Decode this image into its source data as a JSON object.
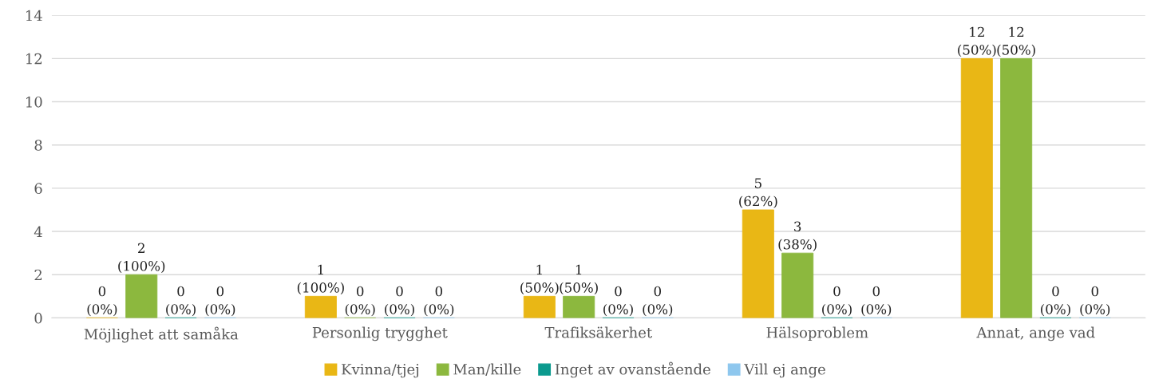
{
  "chart_data": {
    "type": "bar",
    "categories": [
      "Möjlighet att samåka",
      "Personlig trygghet",
      "Trafiksäkerhet",
      "Hälsoproblem",
      "Annat, ange vad"
    ],
    "series": [
      {
        "name": "Kvinna/tjej",
        "color": "#e9b715",
        "values": [
          0,
          1,
          1,
          5,
          12
        ],
        "value_labels": [
          "0\n(0%)",
          "1\n(100%)",
          "1\n(50%)",
          "5\n(62%)",
          "12\n(50%)"
        ]
      },
      {
        "name": "Man/kille",
        "color": "#8cb83e",
        "values": [
          2,
          0,
          1,
          3,
          12
        ],
        "value_labels": [
          "2\n(100%)",
          "0\n(0%)",
          "1\n(50%)",
          "3\n(38%)",
          "12\n(50%)"
        ]
      },
      {
        "name": "Inget av ovanstående",
        "color": "#0b9a8e",
        "values": [
          0,
          0,
          0,
          0,
          0
        ],
        "value_labels": [
          "0\n(0%)",
          "0\n(0%)",
          "0\n(0%)",
          "0\n(0%)",
          "0\n(0%)"
        ]
      },
      {
        "name": "Vill ej ange",
        "color": "#8ec7ee",
        "values": [
          0,
          0,
          0,
          0,
          0
        ],
        "value_labels": [
          "0\n(0%)",
          "0\n(0%)",
          "0\n(0%)",
          "0\n(0%)",
          "0\n(0%)"
        ]
      }
    ],
    "ylim": [
      0,
      14
    ],
    "yticks": [
      0,
      2,
      4,
      6,
      8,
      10,
      12,
      14
    ],
    "grid": "y",
    "legend": "bottom"
  }
}
